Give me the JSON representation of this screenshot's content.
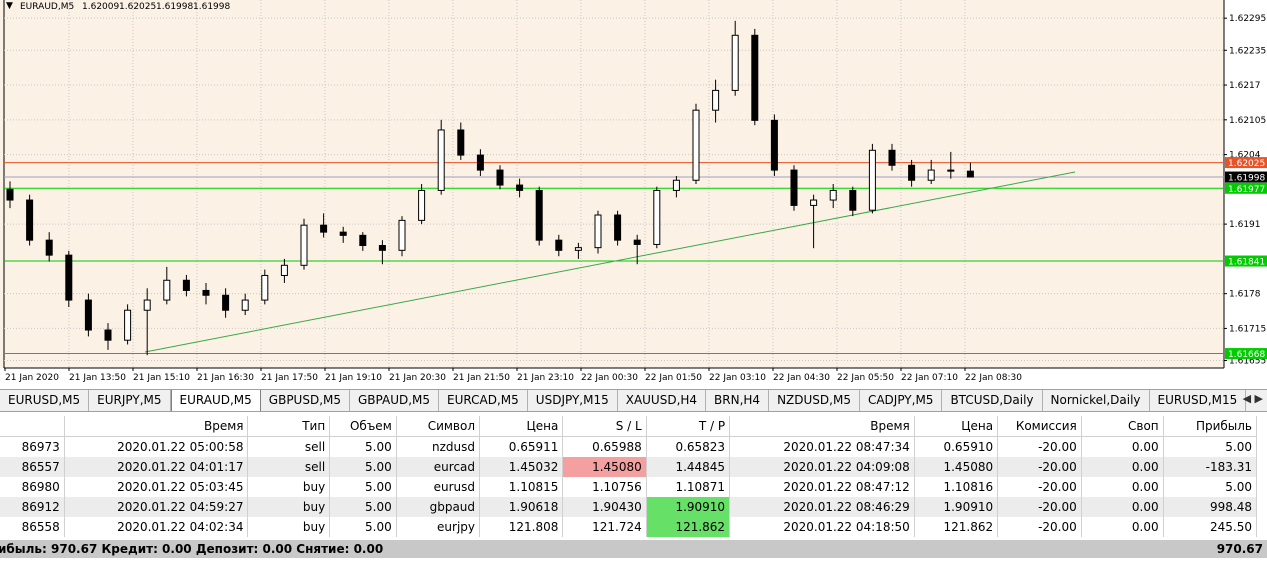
{
  "chart_data": {
    "type": "candlestick",
    "symbol": "EURAUD,M5",
    "ohlc": [
      1.62009,
      1.62025,
      1.61998,
      1.61998
    ],
    "ylim": [
      1.61641,
      1.62329
    ],
    "yticks": [
      1.62295,
      1.62235,
      1.6217,
      1.62105,
      1.6204,
      1.6191,
      1.6178,
      1.61715,
      1.61655
    ],
    "xlabels": [
      "21 Jan 2020",
      "21 Jan 13:50",
      "21 Jan 15:10",
      "21 Jan 16:30",
      "21 Jan 17:50",
      "21 Jan 19:10",
      "21 Jan 20:30",
      "21 Jan 21:50",
      "21 Jan 23:10",
      "22 Jan 00:30",
      "22 Jan 01:50",
      "22 Jan 03:10",
      "22 Jan 04:30",
      "22 Jan 05:50",
      "22 Jan 07:10",
      "22 Jan 08:30"
    ],
    "grid": true,
    "levels": [
      {
        "value": 1.62025,
        "color": "#e8542a"
      },
      {
        "value": 1.61998,
        "color": "#000000"
      },
      {
        "value": 1.61977,
        "color": "#00cc00"
      },
      {
        "value": 1.61841,
        "color": "#00cc00"
      },
      {
        "value": 1.61668,
        "color": "#00cc00"
      }
    ],
    "candles": [
      [
        1.61975,
        1.6199,
        1.6194,
        1.61955
      ],
      [
        1.61955,
        1.61965,
        1.6187,
        1.6188
      ],
      [
        1.6188,
        1.61895,
        1.6184,
        1.61852
      ],
      [
        1.61852,
        1.6186,
        1.61755,
        1.61768
      ],
      [
        1.61768,
        1.6178,
        1.617,
        1.61712
      ],
      [
        1.61712,
        1.61725,
        1.61675,
        1.61693
      ],
      [
        1.61693,
        1.6176,
        1.61685,
        1.61749
      ],
      [
        1.61749,
        1.6179,
        1.61665,
        1.61768
      ],
      [
        1.61768,
        1.6183,
        1.6176,
        1.61805
      ],
      [
        1.61805,
        1.61815,
        1.61775,
        1.61786
      ],
      [
        1.61786,
        1.618,
        1.6176,
        1.61777
      ],
      [
        1.61777,
        1.6179,
        1.61735,
        1.61749
      ],
      [
        1.61749,
        1.6178,
        1.6174,
        1.61768
      ],
      [
        1.61768,
        1.61825,
        1.6176,
        1.61814
      ],
      [
        1.61814,
        1.61845,
        1.618,
        1.61833
      ],
      [
        1.61833,
        1.6192,
        1.61825,
        1.61908
      ],
      [
        1.61908,
        1.6193,
        1.61885,
        1.61895
      ],
      [
        1.61895,
        1.61905,
        1.61875,
        1.61889
      ],
      [
        1.61889,
        1.61895,
        1.6186,
        1.6187
      ],
      [
        1.6187,
        1.6188,
        1.61835,
        1.61861
      ],
      [
        1.61861,
        1.61925,
        1.6185,
        1.61917
      ],
      [
        1.61917,
        1.61985,
        1.6191,
        1.61973
      ],
      [
        1.61973,
        1.62105,
        1.61965,
        1.62086
      ],
      [
        1.62086,
        1.621,
        1.6203,
        1.62039
      ],
      [
        1.62039,
        1.6205,
        1.62,
        1.62011
      ],
      [
        1.62011,
        1.6202,
        1.61975,
        1.61983
      ],
      [
        1.61983,
        1.61995,
        1.6196,
        1.61973
      ],
      [
        1.61973,
        1.6198,
        1.6187,
        1.6188
      ],
      [
        1.6188,
        1.6189,
        1.6185,
        1.61861
      ],
      [
        1.61861,
        1.61875,
        1.61845,
        1.61866
      ],
      [
        1.61866,
        1.61935,
        1.61855,
        1.61927
      ],
      [
        1.61927,
        1.61935,
        1.6187,
        1.6188
      ],
      [
        1.6188,
        1.6189,
        1.61835,
        1.61872
      ],
      [
        1.61872,
        1.6198,
        1.61865,
        1.61973
      ],
      [
        1.61973,
        1.62,
        1.6196,
        1.61992
      ],
      [
        1.61992,
        1.62135,
        1.61985,
        1.62123
      ],
      [
        1.62123,
        1.6218,
        1.621,
        1.6216
      ],
      [
        1.6216,
        1.6229,
        1.6215,
        1.62263
      ],
      [
        1.62263,
        1.62275,
        1.62095,
        1.62104
      ],
      [
        1.62104,
        1.62115,
        1.62,
        1.62011
      ],
      [
        1.62011,
        1.6202,
        1.61935,
        1.61945
      ],
      [
        1.61945,
        1.61965,
        1.61865,
        1.61955
      ],
      [
        1.61955,
        1.61985,
        1.6194,
        1.61973
      ],
      [
        1.61973,
        1.6198,
        1.61925,
        1.61936
      ],
      [
        1.61936,
        1.6206,
        1.6193,
        1.62048
      ],
      [
        1.62048,
        1.6206,
        1.6201,
        1.6202
      ],
      [
        1.6202,
        1.6203,
        1.6198,
        1.61992
      ],
      [
        1.61992,
        1.6203,
        1.61985,
        1.62011
      ],
      [
        1.62011,
        1.62045,
        1.61995,
        1.62009
      ],
      [
        1.62009,
        1.62025,
        1.61998,
        1.61998
      ]
    ]
  },
  "tabs": {
    "items": [
      "EURUSD,M5",
      "EURJPY,M5",
      "EURAUD,M5",
      "GBPUSD,M5",
      "GBPAUD,M5",
      "EURCAD,M5",
      "USDJPY,M15",
      "XAUUSD,H4",
      "BRN,H4",
      "NZDUSD,M5",
      "CADJPY,M5",
      "BTCUSD,Daily",
      "Nornickel,Daily",
      "EURUSD,M15"
    ],
    "active": 2
  },
  "table": {
    "headers": [
      "",
      "Время",
      "Тип",
      "Объем",
      "Символ",
      "Цена",
      "S / L",
      "T / P",
      "Время",
      "Цена",
      "Комиссия",
      "Своп",
      "Прибыль"
    ],
    "rows": [
      [
        "86973",
        "2020.01.22 05:00:58",
        "sell",
        "5.00",
        "nzdusd",
        "0.65911",
        "0.65988",
        "0.65823",
        "2020.01.22 08:47:34",
        "0.65910",
        "-20.00",
        "0.00",
        "5.00"
      ],
      [
        "86557",
        "2020.01.22 04:01:17",
        "sell",
        "5.00",
        "eurcad",
        "1.45032",
        "1.45080",
        "1.44845",
        "2020.01.22 04:09:08",
        "1.45080",
        "-20.00",
        "0.00",
        "-183.31"
      ],
      [
        "86980",
        "2020.01.22 05:03:45",
        "buy",
        "5.00",
        "eurusd",
        "1.10815",
        "1.10756",
        "1.10871",
        "2020.01.22 08:47:12",
        "1.10816",
        "-20.00",
        "0.00",
        "5.00"
      ],
      [
        "86912",
        "2020.01.22 04:59:27",
        "buy",
        "5.00",
        "gbpaud",
        "1.90618",
        "1.90430",
        "1.90910",
        "2020.01.22 08:46:29",
        "1.90910",
        "-20.00",
        "0.00",
        "998.48"
      ],
      [
        "86558",
        "2020.01.22 04:02:34",
        "buy",
        "5.00",
        "eurjpy",
        "121.808",
        "121.724",
        "121.862",
        "2020.01.22 04:18:50",
        "121.862",
        "-20.00",
        "0.00",
        "245.50"
      ]
    ]
  },
  "footer": {
    "summary": "ибыль: 970.67  Кредит: 0.00  Депозит: 0.00  Снятие: 0.00",
    "total": "970.67"
  }
}
